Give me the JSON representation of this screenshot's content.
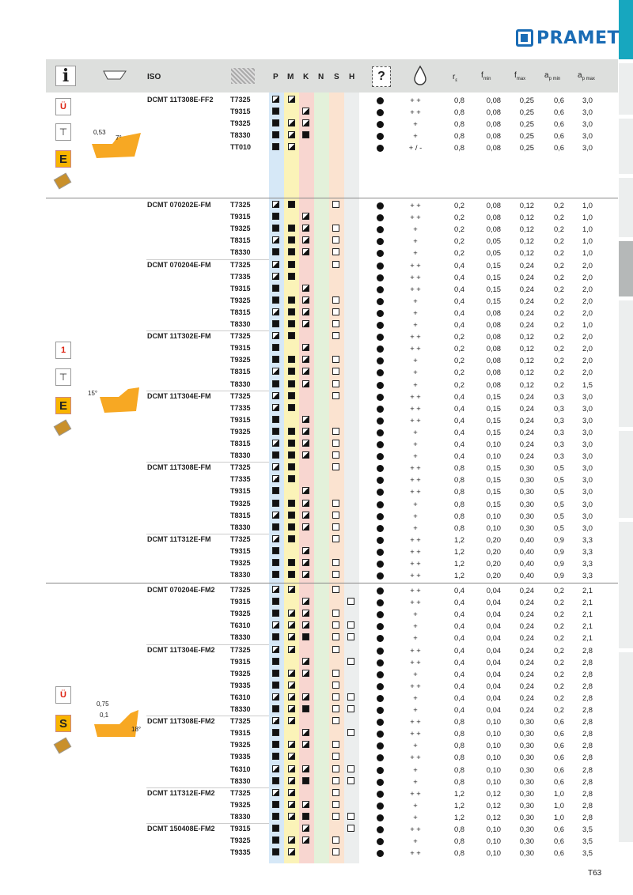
{
  "brand": {
    "name": "PRAMET",
    "color": "#1a6cb5"
  },
  "page_number": "T63",
  "header": {
    "iso": "ISO",
    "p": "P",
    "m": "M",
    "k": "K",
    "n": "N",
    "s": "S",
    "h": "H",
    "re": "r",
    "re_sub": "ε",
    "fmin": "f",
    "fmin_sub": "min",
    "fmax": "f",
    "fmax_sub": "max",
    "apmin": "a",
    "apmin_sub": "p min",
    "apmax": "a",
    "apmax_sub": "p max"
  },
  "band_colors": {
    "P": "#d6e8f7",
    "M": "#fbf3b8",
    "K": "#f8d6d0",
    "N": "#e3f1da",
    "S": "#fbe3d0",
    "H": "#eceeee"
  },
  "groups": [
    {
      "chip": "FF2",
      "dims": [
        "0,53",
        "7°"
      ],
      "icons": [
        "Ü",
        "E"
      ]
    },
    {
      "chip": "FM",
      "dims": [
        "15°"
      ],
      "icons": [
        "1",
        "E"
      ]
    },
    {
      "chip": "FM2",
      "dims": [
        "0,75",
        "0,1",
        "18°"
      ],
      "icons": [
        "Ü",
        "S"
      ]
    }
  ],
  "rows": [
    {
      "iso": "DCMT 11T308E-FF2",
      "g": "T7325",
      "p": "h",
      "m": "h",
      "k": "",
      "n": "",
      "s": "",
      "h": "",
      "cl": "+ +",
      "r": "0,8",
      "fmin": "0,08",
      "fmax": "0,25",
      "apmin": "0,6",
      "apmax": "3,0"
    },
    {
      "iso": "",
      "g": "T9315",
      "p": "f",
      "m": "",
      "k": "h",
      "n": "",
      "s": "",
      "h": "",
      "cl": "+ +",
      "r": "0,8",
      "fmin": "0,08",
      "fmax": "0,25",
      "apmin": "0,6",
      "apmax": "3,0"
    },
    {
      "iso": "",
      "g": "T9325",
      "p": "f",
      "m": "h",
      "k": "h",
      "n": "",
      "s": "",
      "h": "",
      "cl": "+",
      "r": "0,8",
      "fmin": "0,08",
      "fmax": "0,25",
      "apmin": "0,6",
      "apmax": "3,0"
    },
    {
      "iso": "",
      "g": "T8330",
      "p": "f",
      "m": "h",
      "k": "f",
      "n": "",
      "s": "",
      "h": "",
      "cl": "+",
      "r": "0,8",
      "fmin": "0,08",
      "fmax": "0,25",
      "apmin": "0,6",
      "apmax": "3,0"
    },
    {
      "iso": "",
      "g": "TT010",
      "p": "f",
      "m": "h",
      "k": "",
      "n": "",
      "s": "",
      "h": "",
      "cl": "+ / -",
      "r": "0,8",
      "fmin": "0,08",
      "fmax": "0,25",
      "apmin": "0,6",
      "apmax": "3,0"
    },
    {
      "iso": "DCMT 070202E-FM",
      "g": "T7325",
      "p": "h",
      "m": "f",
      "k": "",
      "n": "",
      "s": "e",
      "h": "",
      "cl": "+ +",
      "r": "0,2",
      "fmin": "0,08",
      "fmax": "0,12",
      "apmin": "0,2",
      "apmax": "1,0"
    },
    {
      "iso": "",
      "g": "T9315",
      "p": "f",
      "m": "",
      "k": "h",
      "n": "",
      "s": "",
      "h": "",
      "cl": "+ +",
      "r": "0,2",
      "fmin": "0,08",
      "fmax": "0,12",
      "apmin": "0,2",
      "apmax": "1,0"
    },
    {
      "iso": "",
      "g": "T9325",
      "p": "f",
      "m": "f",
      "k": "h",
      "n": "",
      "s": "e",
      "h": "",
      "cl": "+",
      "r": "0,2",
      "fmin": "0,08",
      "fmax": "0,12",
      "apmin": "0,2",
      "apmax": "1,0"
    },
    {
      "iso": "",
      "g": "T8315",
      "p": "h",
      "m": "f",
      "k": "h",
      "n": "",
      "s": "e",
      "h": "",
      "cl": "+",
      "r": "0,2",
      "fmin": "0,05",
      "fmax": "0,12",
      "apmin": "0,2",
      "apmax": "1,0"
    },
    {
      "iso": "",
      "g": "T8330",
      "p": "f",
      "m": "f",
      "k": "h",
      "n": "",
      "s": "e",
      "h": "",
      "cl": "+",
      "r": "0,2",
      "fmin": "0,05",
      "fmax": "0,12",
      "apmin": "0,2",
      "apmax": "1,0"
    },
    {
      "iso": "DCMT 070204E-FM",
      "g": "T7325",
      "p": "h",
      "m": "f",
      "k": "",
      "n": "",
      "s": "e",
      "h": "",
      "cl": "+ +",
      "r": "0,4",
      "fmin": "0,15",
      "fmax": "0,24",
      "apmin": "0,2",
      "apmax": "2,0"
    },
    {
      "iso": "",
      "g": "T7335",
      "p": "h",
      "m": "f",
      "k": "",
      "n": "",
      "s": "",
      "h": "",
      "cl": "+ +",
      "r": "0,4",
      "fmin": "0,15",
      "fmax": "0,24",
      "apmin": "0,2",
      "apmax": "2,0"
    },
    {
      "iso": "",
      "g": "T9315",
      "p": "f",
      "m": "",
      "k": "h",
      "n": "",
      "s": "",
      "h": "",
      "cl": "+ +",
      "r": "0,4",
      "fmin": "0,15",
      "fmax": "0,24",
      "apmin": "0,2",
      "apmax": "2,0"
    },
    {
      "iso": "",
      "g": "T9325",
      "p": "f",
      "m": "f",
      "k": "h",
      "n": "",
      "s": "e",
      "h": "",
      "cl": "+",
      "r": "0,4",
      "fmin": "0,15",
      "fmax": "0,24",
      "apmin": "0,2",
      "apmax": "2,0"
    },
    {
      "iso": "",
      "g": "T8315",
      "p": "h",
      "m": "f",
      "k": "h",
      "n": "",
      "s": "e",
      "h": "",
      "cl": "+",
      "r": "0,4",
      "fmin": "0,08",
      "fmax": "0,24",
      "apmin": "0,2",
      "apmax": "2,0"
    },
    {
      "iso": "",
      "g": "T8330",
      "p": "f",
      "m": "f",
      "k": "h",
      "n": "",
      "s": "e",
      "h": "",
      "cl": "+",
      "r": "0,4",
      "fmin": "0,08",
      "fmax": "0,24",
      "apmin": "0,2",
      "apmax": "1,0"
    },
    {
      "iso": "DCMT 11T302E-FM",
      "g": "T7325",
      "p": "h",
      "m": "f",
      "k": "",
      "n": "",
      "s": "e",
      "h": "",
      "cl": "+ +",
      "r": "0,2",
      "fmin": "0,08",
      "fmax": "0,12",
      "apmin": "0,2",
      "apmax": "2,0"
    },
    {
      "iso": "",
      "g": "T9315",
      "p": "f",
      "m": "",
      "k": "h",
      "n": "",
      "s": "",
      "h": "",
      "cl": "+ +",
      "r": "0,2",
      "fmin": "0,08",
      "fmax": "0,12",
      "apmin": "0,2",
      "apmax": "2,0"
    },
    {
      "iso": "",
      "g": "T9325",
      "p": "f",
      "m": "f",
      "k": "h",
      "n": "",
      "s": "e",
      "h": "",
      "cl": "+",
      "r": "0,2",
      "fmin": "0,08",
      "fmax": "0,12",
      "apmin": "0,2",
      "apmax": "2,0"
    },
    {
      "iso": "",
      "g": "T8315",
      "p": "h",
      "m": "f",
      "k": "h",
      "n": "",
      "s": "e",
      "h": "",
      "cl": "+",
      "r": "0,2",
      "fmin": "0,08",
      "fmax": "0,12",
      "apmin": "0,2",
      "apmax": "2,0"
    },
    {
      "iso": "",
      "g": "T8330",
      "p": "f",
      "m": "f",
      "k": "h",
      "n": "",
      "s": "e",
      "h": "",
      "cl": "+",
      "r": "0,2",
      "fmin": "0,08",
      "fmax": "0,12",
      "apmin": "0,2",
      "apmax": "1,5"
    },
    {
      "iso": "DCMT 11T304E-FM",
      "g": "T7325",
      "p": "h",
      "m": "f",
      "k": "",
      "n": "",
      "s": "e",
      "h": "",
      "cl": "+ +",
      "r": "0,4",
      "fmin": "0,15",
      "fmax": "0,24",
      "apmin": "0,3",
      "apmax": "3,0"
    },
    {
      "iso": "",
      "g": "T7335",
      "p": "h",
      "m": "f",
      "k": "",
      "n": "",
      "s": "",
      "h": "",
      "cl": "+ +",
      "r": "0,4",
      "fmin": "0,15",
      "fmax": "0,24",
      "apmin": "0,3",
      "apmax": "3,0"
    },
    {
      "iso": "",
      "g": "T9315",
      "p": "f",
      "m": "",
      "k": "h",
      "n": "",
      "s": "",
      "h": "",
      "cl": "+ +",
      "r": "0,4",
      "fmin": "0,15",
      "fmax": "0,24",
      "apmin": "0,3",
      "apmax": "3,0"
    },
    {
      "iso": "",
      "g": "T9325",
      "p": "f",
      "m": "f",
      "k": "h",
      "n": "",
      "s": "e",
      "h": "",
      "cl": "+",
      "r": "0,4",
      "fmin": "0,15",
      "fmax": "0,24",
      "apmin": "0,3",
      "apmax": "3,0"
    },
    {
      "iso": "",
      "g": "T8315",
      "p": "h",
      "m": "f",
      "k": "h",
      "n": "",
      "s": "e",
      "h": "",
      "cl": "+",
      "r": "0,4",
      "fmin": "0,10",
      "fmax": "0,24",
      "apmin": "0,3",
      "apmax": "3,0"
    },
    {
      "iso": "",
      "g": "T8330",
      "p": "f",
      "m": "f",
      "k": "h",
      "n": "",
      "s": "e",
      "h": "",
      "cl": "+",
      "r": "0,4",
      "fmin": "0,10",
      "fmax": "0,24",
      "apmin": "0,3",
      "apmax": "3,0"
    },
    {
      "iso": "DCMT 11T308E-FM",
      "g": "T7325",
      "p": "h",
      "m": "f",
      "k": "",
      "n": "",
      "s": "e",
      "h": "",
      "cl": "+ +",
      "r": "0,8",
      "fmin": "0,15",
      "fmax": "0,30",
      "apmin": "0,5",
      "apmax": "3,0"
    },
    {
      "iso": "",
      "g": "T7335",
      "p": "h",
      "m": "f",
      "k": "",
      "n": "",
      "s": "",
      "h": "",
      "cl": "+ +",
      "r": "0,8",
      "fmin": "0,15",
      "fmax": "0,30",
      "apmin": "0,5",
      "apmax": "3,0"
    },
    {
      "iso": "",
      "g": "T9315",
      "p": "f",
      "m": "",
      "k": "h",
      "n": "",
      "s": "",
      "h": "",
      "cl": "+ +",
      "r": "0,8",
      "fmin": "0,15",
      "fmax": "0,30",
      "apmin": "0,5",
      "apmax": "3,0"
    },
    {
      "iso": "",
      "g": "T9325",
      "p": "f",
      "m": "f",
      "k": "h",
      "n": "",
      "s": "e",
      "h": "",
      "cl": "+",
      "r": "0,8",
      "fmin": "0,15",
      "fmax": "0,30",
      "apmin": "0,5",
      "apmax": "3,0"
    },
    {
      "iso": "",
      "g": "T8315",
      "p": "h",
      "m": "f",
      "k": "h",
      "n": "",
      "s": "e",
      "h": "",
      "cl": "+",
      "r": "0,8",
      "fmin": "0,10",
      "fmax": "0,30",
      "apmin": "0,5",
      "apmax": "3,0"
    },
    {
      "iso": "",
      "g": "T8330",
      "p": "f",
      "m": "f",
      "k": "h",
      "n": "",
      "s": "e",
      "h": "",
      "cl": "+",
      "r": "0,8",
      "fmin": "0,10",
      "fmax": "0,30",
      "apmin": "0,5",
      "apmax": "3,0"
    },
    {
      "iso": "DCMT 11T312E-FM",
      "g": "T7325",
      "p": "h",
      "m": "f",
      "k": "",
      "n": "",
      "s": "e",
      "h": "",
      "cl": "+ +",
      "r": "1,2",
      "fmin": "0,20",
      "fmax": "0,40",
      "apmin": "0,9",
      "apmax": "3,3"
    },
    {
      "iso": "",
      "g": "T9315",
      "p": "f",
      "m": "",
      "k": "h",
      "n": "",
      "s": "",
      "h": "",
      "cl": "+ +",
      "r": "1,2",
      "fmin": "0,20",
      "fmax": "0,40",
      "apmin": "0,9",
      "apmax": "3,3"
    },
    {
      "iso": "",
      "g": "T9325",
      "p": "f",
      "m": "f",
      "k": "h",
      "n": "",
      "s": "e",
      "h": "",
      "cl": "+ +",
      "r": "1,2",
      "fmin": "0,20",
      "fmax": "0,40",
      "apmin": "0,9",
      "apmax": "3,3"
    },
    {
      "iso": "",
      "g": "T8330",
      "p": "f",
      "m": "f",
      "k": "h",
      "n": "",
      "s": "e",
      "h": "",
      "cl": "+ +",
      "r": "1,2",
      "fmin": "0,20",
      "fmax": "0,40",
      "apmin": "0,9",
      "apmax": "3,3"
    },
    {
      "iso": "DCMT 070204E-FM2",
      "g": "T7325",
      "p": "h",
      "m": "h",
      "k": "",
      "n": "",
      "s": "e",
      "h": "",
      "cl": "+ +",
      "r": "0,4",
      "fmin": "0,04",
      "fmax": "0,24",
      "apmin": "0,2",
      "apmax": "2,1"
    },
    {
      "iso": "",
      "g": "T9315",
      "p": "f",
      "m": "",
      "k": "h",
      "n": "",
      "s": "",
      "h": "e",
      "cl": "+ +",
      "r": "0,4",
      "fmin": "0,04",
      "fmax": "0,24",
      "apmin": "0,2",
      "apmax": "2,1"
    },
    {
      "iso": "",
      "g": "T9325",
      "p": "f",
      "m": "h",
      "k": "h",
      "n": "",
      "s": "e",
      "h": "",
      "cl": "+",
      "r": "0,4",
      "fmin": "0,04",
      "fmax": "0,24",
      "apmin": "0,2",
      "apmax": "2,1"
    },
    {
      "iso": "",
      "g": "T6310",
      "p": "h",
      "m": "h",
      "k": "h",
      "n": "",
      "s": "e",
      "h": "e",
      "cl": "+",
      "r": "0,4",
      "fmin": "0,04",
      "fmax": "0,24",
      "apmin": "0,2",
      "apmax": "2,1"
    },
    {
      "iso": "",
      "g": "T8330",
      "p": "f",
      "m": "h",
      "k": "f",
      "n": "",
      "s": "e",
      "h": "e",
      "cl": "+",
      "r": "0,4",
      "fmin": "0,04",
      "fmax": "0,24",
      "apmin": "0,2",
      "apmax": "2,1"
    },
    {
      "iso": "DCMT 11T304E-FM2",
      "g": "T7325",
      "p": "h",
      "m": "h",
      "k": "",
      "n": "",
      "s": "e",
      "h": "",
      "cl": "+ +",
      "r": "0,4",
      "fmin": "0,04",
      "fmax": "0,24",
      "apmin": "0,2",
      "apmax": "2,8"
    },
    {
      "iso": "",
      "g": "T9315",
      "p": "f",
      "m": "",
      "k": "h",
      "n": "",
      "s": "",
      "h": "e",
      "cl": "+ +",
      "r": "0,4",
      "fmin": "0,04",
      "fmax": "0,24",
      "apmin": "0,2",
      "apmax": "2,8"
    },
    {
      "iso": "",
      "g": "T9325",
      "p": "f",
      "m": "h",
      "k": "h",
      "n": "",
      "s": "e",
      "h": "",
      "cl": "+",
      "r": "0,4",
      "fmin": "0,04",
      "fmax": "0,24",
      "apmin": "0,2",
      "apmax": "2,8"
    },
    {
      "iso": "",
      "g": "T9335",
      "p": "f",
      "m": "h",
      "k": "",
      "n": "",
      "s": "e",
      "h": "",
      "cl": "+ +",
      "r": "0,4",
      "fmin": "0,04",
      "fmax": "0,24",
      "apmin": "0,2",
      "apmax": "2,8"
    },
    {
      "iso": "",
      "g": "T6310",
      "p": "h",
      "m": "h",
      "k": "h",
      "n": "",
      "s": "e",
      "h": "e",
      "cl": "+",
      "r": "0,4",
      "fmin": "0,04",
      "fmax": "0,24",
      "apmin": "0,2",
      "apmax": "2,8"
    },
    {
      "iso": "",
      "g": "T8330",
      "p": "f",
      "m": "h",
      "k": "f",
      "n": "",
      "s": "e",
      "h": "e",
      "cl": "+",
      "r": "0,4",
      "fmin": "0,04",
      "fmax": "0,24",
      "apmin": "0,2",
      "apmax": "2,8"
    },
    {
      "iso": "DCMT 11T308E-FM2",
      "g": "T7325",
      "p": "h",
      "m": "h",
      "k": "",
      "n": "",
      "s": "e",
      "h": "",
      "cl": "+ +",
      "r": "0,8",
      "fmin": "0,10",
      "fmax": "0,30",
      "apmin": "0,6",
      "apmax": "2,8"
    },
    {
      "iso": "",
      "g": "T9315",
      "p": "f",
      "m": "",
      "k": "h",
      "n": "",
      "s": "",
      "h": "e",
      "cl": "+ +",
      "r": "0,8",
      "fmin": "0,10",
      "fmax": "0,30",
      "apmin": "0,6",
      "apmax": "2,8"
    },
    {
      "iso": "",
      "g": "T9325",
      "p": "f",
      "m": "h",
      "k": "h",
      "n": "",
      "s": "e",
      "h": "",
      "cl": "+",
      "r": "0,8",
      "fmin": "0,10",
      "fmax": "0,30",
      "apmin": "0,6",
      "apmax": "2,8"
    },
    {
      "iso": "",
      "g": "T9335",
      "p": "f",
      "m": "h",
      "k": "",
      "n": "",
      "s": "e",
      "h": "",
      "cl": "+ +",
      "r": "0,8",
      "fmin": "0,10",
      "fmax": "0,30",
      "apmin": "0,6",
      "apmax": "2,8"
    },
    {
      "iso": "",
      "g": "T6310",
      "p": "h",
      "m": "h",
      "k": "h",
      "n": "",
      "s": "e",
      "h": "e",
      "cl": "+",
      "r": "0,8",
      "fmin": "0,10",
      "fmax": "0,30",
      "apmin": "0,6",
      "apmax": "2,8"
    },
    {
      "iso": "",
      "g": "T8330",
      "p": "f",
      "m": "h",
      "k": "f",
      "n": "",
      "s": "e",
      "h": "e",
      "cl": "+",
      "r": "0,8",
      "fmin": "0,10",
      "fmax": "0,30",
      "apmin": "0,6",
      "apmax": "2,8"
    },
    {
      "iso": "DCMT 11T312E-FM2",
      "g": "T7325",
      "p": "h",
      "m": "h",
      "k": "",
      "n": "",
      "s": "e",
      "h": "",
      "cl": "+ +",
      "r": "1,2",
      "fmin": "0,12",
      "fmax": "0,30",
      "apmin": "1,0",
      "apmax": "2,8"
    },
    {
      "iso": "",
      "g": "T9325",
      "p": "f",
      "m": "h",
      "k": "h",
      "n": "",
      "s": "e",
      "h": "",
      "cl": "+",
      "r": "1,2",
      "fmin": "0,12",
      "fmax": "0,30",
      "apmin": "1,0",
      "apmax": "2,8"
    },
    {
      "iso": "",
      "g": "T8330",
      "p": "f",
      "m": "h",
      "k": "f",
      "n": "",
      "s": "e",
      "h": "e",
      "cl": "+",
      "r": "1,2",
      "fmin": "0,12",
      "fmax": "0,30",
      "apmin": "1,0",
      "apmax": "2,8"
    },
    {
      "iso": "DCMT 150408E-FM2",
      "g": "T9315",
      "p": "f",
      "m": "",
      "k": "h",
      "n": "",
      "s": "",
      "h": "e",
      "cl": "+ +",
      "r": "0,8",
      "fmin": "0,10",
      "fmax": "0,30",
      "apmin": "0,6",
      "apmax": "3,5"
    },
    {
      "iso": "",
      "g": "T9325",
      "p": "f",
      "m": "h",
      "k": "h",
      "n": "",
      "s": "e",
      "h": "",
      "cl": "+",
      "r": "0,8",
      "fmin": "0,10",
      "fmax": "0,30",
      "apmin": "0,6",
      "apmax": "3,5"
    },
    {
      "iso": "",
      "g": "T9335",
      "p": "f",
      "m": "h",
      "k": "",
      "n": "",
      "s": "e",
      "h": "",
      "cl": "+ +",
      "r": "0,8",
      "fmin": "0,10",
      "fmax": "0,30",
      "apmin": "0,6",
      "apmax": "3,5"
    }
  ]
}
